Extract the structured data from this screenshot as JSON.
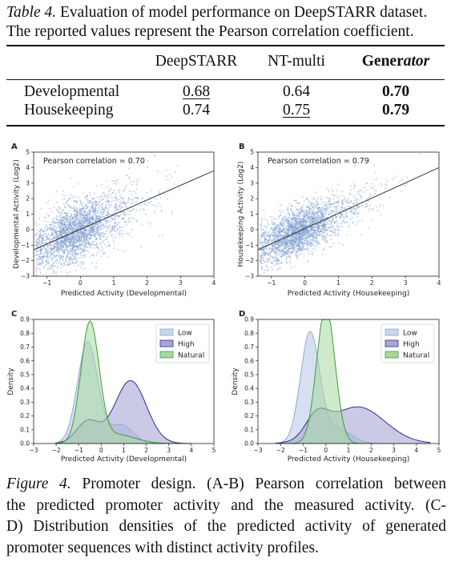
{
  "table_caption": {
    "label": "Table 4.",
    "text": " Evaluation of model performance on DeepSTARR dataset. The reported values represent the Pearson correlation coefficient."
  },
  "table": {
    "columns": [
      "DeepSTARR",
      "NT-multi",
      "Generator"
    ],
    "generator_header": {
      "bold_part": "Gener",
      "italic_part": "ator"
    },
    "rows": [
      {
        "label": "Developmental",
        "values": [
          "0.68",
          "0.64",
          "0.70"
        ]
      },
      {
        "label": "Housekeeping",
        "values": [
          "0.74",
          "0.75",
          "0.79"
        ]
      }
    ]
  },
  "panels": {
    "A": {
      "letter": "A",
      "annotation": "Pearson correlation = 0.70",
      "xlabel": "Predicted Activity (Developmental)",
      "ylabel": "Developmental Activity (Log2)",
      "xticks": [
        "−1",
        "0",
        "1",
        "2",
        "3",
        "4"
      ],
      "yticks": [
        "−3",
        "−2",
        "−1",
        "0",
        "1",
        "2",
        "3",
        "4",
        "5"
      ]
    },
    "B": {
      "letter": "B",
      "annotation": "Pearson correlation = 0.79",
      "xlabel": "Predicted Activity (Housekeeping)",
      "ylabel": "Housekeeping Activity (Log2)",
      "xticks": [
        "−1",
        "0",
        "1",
        "2",
        "3",
        "4"
      ],
      "yticks": [
        "−3",
        "−2",
        "−1",
        "0",
        "1",
        "2",
        "3",
        "4",
        "5"
      ]
    },
    "C": {
      "letter": "C",
      "xlabel": "Predicted Activity (Developmental)",
      "ylabel": "Density",
      "xticks": [
        "−3",
        "−2",
        "−1",
        "0",
        "1",
        "2",
        "3",
        "4",
        "5"
      ],
      "yticks": [
        "0.0",
        "0.1",
        "0.2",
        "0.3",
        "0.4",
        "0.5",
        "0.6",
        "0.7",
        "0.8",
        "0.9"
      ],
      "legend": [
        "Low",
        "High",
        "Natural"
      ]
    },
    "D": {
      "letter": "D",
      "xlabel": "Predicted Activity (Housekeeping)",
      "ylabel": "Density",
      "xticks": [
        "−3",
        "−2",
        "−1",
        "0",
        "1",
        "2",
        "3",
        "4",
        "5"
      ],
      "yticks": [
        "0.0",
        "0.1",
        "0.2",
        "0.3",
        "0.4",
        "0.5",
        "0.6",
        "0.7",
        "0.8",
        "0.9"
      ],
      "legend": [
        "Low",
        "High",
        "Natural"
      ]
    }
  },
  "colors": {
    "scatter": "#7f9fd0",
    "low_fill": "#c9d6ec",
    "low_line": "#8fa8d6",
    "high_fill": "#a9a6d6",
    "high_line": "#2b2f8f",
    "natural_fill": "#a8d8a0",
    "natural_line": "#3f9a3a"
  },
  "chart_data": [
    {
      "type": "scatter",
      "panel": "A",
      "xlabel": "Predicted Activity (Developmental)",
      "ylabel": "Developmental Activity (Log2)",
      "xlim": [
        -1.4,
        4
      ],
      "ylim": [
        -3,
        5
      ],
      "fit_line": {
        "x": [
          -1.4,
          4
        ],
        "y": [
          -1.3,
          3.8
        ]
      },
      "pearson": 0.7
    },
    {
      "type": "scatter",
      "panel": "B",
      "xlabel": "Predicted Activity (Housekeeping)",
      "ylabel": "Housekeeping Activity (Log2)",
      "xlim": [
        -1.4,
        4
      ],
      "ylim": [
        -3,
        5
      ],
      "fit_line": {
        "x": [
          -1.4,
          4
        ],
        "y": [
          -1.3,
          4.0
        ]
      },
      "pearson": 0.79
    },
    {
      "type": "area",
      "panel": "C",
      "xlabel": "Predicted Activity (Developmental)",
      "ylabel": "Density",
      "xlim": [
        -3,
        5
      ],
      "ylim": [
        0,
        0.9
      ],
      "series": [
        {
          "name": "Low",
          "components": [
            {
              "w": 0.83,
              "mu": -0.6,
              "sd": 0.45
            },
            {
              "w": 0.17,
              "mu": 0.9,
              "sd": 0.5
            }
          ]
        },
        {
          "name": "High",
          "components": [
            {
              "w": 0.2,
              "mu": -0.6,
              "sd": 0.5
            },
            {
              "w": 0.8,
              "mu": 1.3,
              "sd": 0.7
            }
          ]
        },
        {
          "name": "Natural",
          "components": [
            {
              "w": 0.87,
              "mu": -0.5,
              "sd": 0.4
            },
            {
              "w": 0.13,
              "mu": 0.7,
              "sd": 0.8
            }
          ]
        }
      ]
    },
    {
      "type": "area",
      "panel": "D",
      "xlabel": "Predicted Activity (Housekeeping)",
      "ylabel": "Density",
      "xlim": [
        -3,
        5
      ],
      "ylim": [
        0,
        0.9
      ],
      "series": [
        {
          "name": "Low",
          "components": [
            {
              "w": 0.84,
              "mu": -0.7,
              "sd": 0.42
            },
            {
              "w": 0.16,
              "mu": 0.5,
              "sd": 0.6
            }
          ]
        },
        {
          "name": "High",
          "components": [
            {
              "w": 0.2,
              "mu": -0.4,
              "sd": 0.5
            },
            {
              "w": 0.8,
              "mu": 1.4,
              "sd": 1.2
            }
          ]
        },
        {
          "name": "Natural",
          "components": [
            {
              "w": 1.0,
              "mu": 0.0,
              "sd": 0.4
            }
          ]
        }
      ]
    }
  ],
  "figure_caption": {
    "label": "Figure 4.",
    "line1_rest": " Promoter design.  (A-B) Pearson correlation between",
    "line2": "the predicted promoter activity and the measured activity.  (C-",
    "line3": "D) Distribution densities of the predicted activity of generated",
    "line4": "promoter sequences with distinct activity profiles."
  }
}
